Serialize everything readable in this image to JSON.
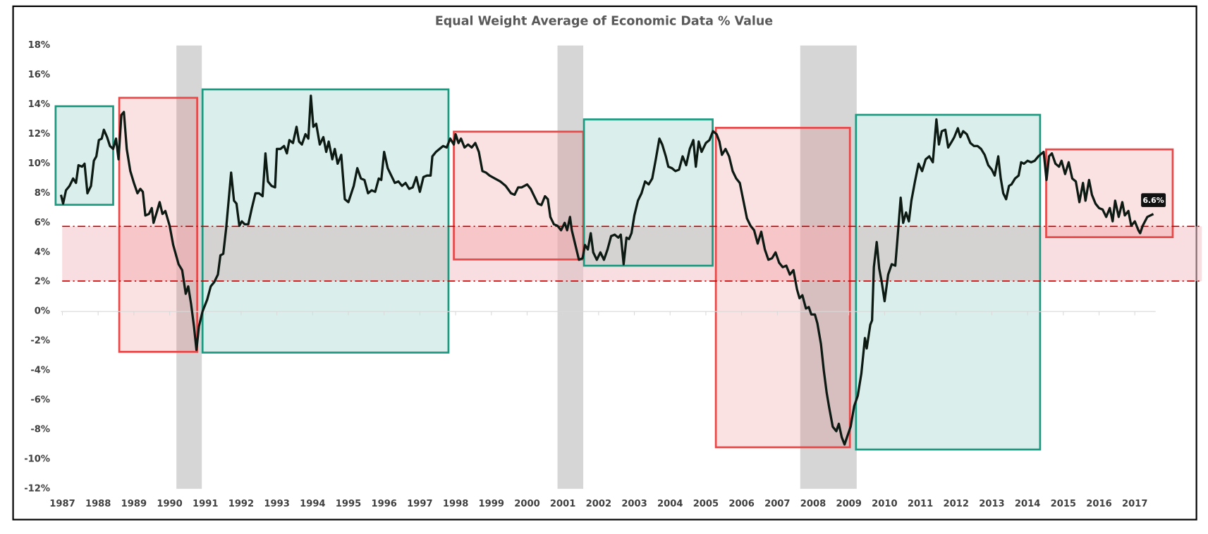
{
  "chart_data": {
    "type": "line",
    "title": "Equal Weight Average of Economic Data % Value",
    "xlim": [
      1986.8,
      2018.1
    ],
    "xticks": [
      1987,
      1988,
      1989,
      1990,
      1991,
      1992,
      1993,
      1994,
      1995,
      1996,
      1997,
      1998,
      1999,
      2000,
      2001,
      2002,
      2003,
      2004,
      2005,
      2006,
      2007,
      2008,
      2009,
      2010,
      2011,
      2012,
      2013,
      2014,
      2015,
      2016,
      2017
    ],
    "ylim": [
      -12,
      18
    ],
    "yticks": [
      {
        "value": -12,
        "label": "-12%"
      },
      {
        "value": -10,
        "label": "-10%"
      },
      {
        "value": -8,
        "label": "-8%"
      },
      {
        "value": -6,
        "label": "-6%"
      },
      {
        "value": -4,
        "label": "-4%"
      },
      {
        "value": -2,
        "label": "-2%"
      },
      {
        "value": 0,
        "label": "0%"
      },
      {
        "value": 2,
        "label": "2%"
      },
      {
        "value": 4,
        "label": "4%"
      },
      {
        "value": 6,
        "label": "6%"
      },
      {
        "value": 8,
        "label": "8%"
      },
      {
        "value": 10,
        "label": "10%"
      },
      {
        "value": 12,
        "label": "12%"
      },
      {
        "value": 14,
        "label": "14%"
      },
      {
        "value": 16,
        "label": "16%"
      },
      {
        "value": 18,
        "label": "18%"
      }
    ],
    "line_color": "#0d1a14",
    "end_label": "6.6%",
    "x": [
      1986.96,
      1987.02,
      1987.1,
      1987.2,
      1987.3,
      1987.38,
      1987.45,
      1987.55,
      1987.62,
      1987.7,
      1987.8,
      1987.88,
      1987.95,
      1988.02,
      1988.1,
      1988.16,
      1988.25,
      1988.33,
      1988.42,
      1988.5,
      1988.57,
      1988.65,
      1988.72,
      1988.8,
      1988.9,
      1989.0,
      1989.1,
      1989.18,
      1989.25,
      1989.32,
      1989.42,
      1989.5,
      1989.55,
      1989.65,
      1989.72,
      1989.8,
      1989.88,
      1990.0,
      1990.1,
      1990.25,
      1990.35,
      1990.45,
      1990.52,
      1990.6,
      1990.68,
      1990.75,
      1990.82,
      1990.92,
      1991.05,
      1991.15,
      1991.25,
      1991.35,
      1991.42,
      1991.5,
      1991.58,
      1991.65,
      1991.72,
      1991.8,
      1991.87,
      1991.95,
      1992.02,
      1992.1,
      1992.2,
      1992.3,
      1992.4,
      1992.5,
      1992.6,
      1992.68,
      1992.75,
      1992.85,
      1992.95,
      1993.0,
      1993.1,
      1993.2,
      1993.28,
      1993.35,
      1993.45,
      1993.55,
      1993.62,
      1993.7,
      1993.8,
      1993.88,
      1993.95,
      1994.02,
      1994.1,
      1994.2,
      1994.3,
      1994.38,
      1994.45,
      1994.55,
      1994.62,
      1994.7,
      1994.8,
      1994.9,
      1995.0,
      1995.15,
      1995.25,
      1995.35,
      1995.45,
      1995.55,
      1995.65,
      1995.75,
      1995.85,
      1995.92,
      1996.0,
      1996.1,
      1996.2,
      1996.3,
      1996.4,
      1996.5,
      1996.6,
      1996.7,
      1996.8,
      1996.9,
      1997.0,
      1997.1,
      1997.2,
      1997.3,
      1997.35,
      1997.45,
      1997.55,
      1997.65,
      1997.75,
      1997.85,
      1997.95,
      1998.0,
      1998.08,
      1998.15,
      1998.25,
      1998.35,
      1998.45,
      1998.55,
      1998.65,
      1998.75,
      1998.85,
      1998.95,
      1999.1,
      1999.25,
      1999.4,
      1999.55,
      1999.65,
      1999.75,
      1999.85,
      2000.0,
      2000.1,
      2000.2,
      2000.3,
      2000.4,
      2000.5,
      2000.58,
      2000.65,
      2000.75,
      2000.85,
      2000.95,
      2001.05,
      2001.12,
      2001.2,
      2001.25,
      2001.3,
      2001.38,
      2001.45,
      2001.55,
      2001.62,
      2001.7,
      2001.78,
      2001.85,
      2001.95,
      2002.05,
      2002.15,
      2002.25,
      2002.35,
      2002.45,
      2002.55,
      2002.62,
      2002.7,
      2002.78,
      2002.85,
      2002.92,
      2003.0,
      2003.1,
      2003.2,
      2003.3,
      2003.4,
      2003.5,
      2003.6,
      2003.7,
      2003.78,
      2003.88,
      2003.95,
      2004.05,
      2004.15,
      2004.25,
      2004.35,
      2004.45,
      2004.55,
      2004.65,
      2004.72,
      2004.8,
      2004.88,
      2005.0,
      2005.1,
      2005.2,
      2005.3,
      2005.38,
      2005.45,
      2005.55,
      2005.65,
      2005.75,
      2005.85,
      2005.95,
      2006.05,
      2006.15,
      2006.25,
      2006.35,
      2006.45,
      2006.55,
      2006.65,
      2006.75,
      2006.85,
      2006.95,
      2007.05,
      2007.15,
      2007.25,
      2007.35,
      2007.45,
      2007.55,
      2007.62,
      2007.7,
      2007.8,
      2007.88,
      2007.95,
      2008.05,
      2008.12,
      2008.22,
      2008.3,
      2008.38,
      2008.45,
      2008.55,
      2008.65,
      2008.72,
      2008.8,
      2008.88,
      2008.95,
      2009.05,
      2009.15,
      2009.25,
      2009.35,
      2009.45,
      2009.5,
      2009.6,
      2009.65,
      2009.7,
      2009.78,
      2009.85,
      2009.92,
      2010.0,
      2010.1,
      2010.2,
      2010.3,
      2010.38,
      2010.45,
      2010.52,
      2010.6,
      2010.68,
      2010.75,
      2010.85,
      2010.95,
      2011.05,
      2011.15,
      2011.25,
      2011.35,
      2011.45,
      2011.52,
      2011.6,
      2011.7,
      2011.78,
      2011.88,
      2011.95,
      2012.05,
      2012.12,
      2012.2,
      2012.3,
      2012.4,
      2012.5,
      2012.6,
      2012.7,
      2012.8,
      2012.9,
      2013.0,
      2013.08,
      2013.18,
      2013.25,
      2013.32,
      2013.4,
      2013.48,
      2013.55,
      2013.65,
      2013.75,
      2013.82,
      2013.9,
      2014.0,
      2014.1,
      2014.2,
      2014.3,
      2014.45,
      2014.53,
      2014.6,
      2014.68,
      2014.78,
      2014.88,
      2014.95,
      2015.05,
      2015.15,
      2015.25,
      2015.35,
      2015.45,
      2015.55,
      2015.62,
      2015.72,
      2015.8,
      2015.9,
      2016.0,
      2016.1,
      2016.2,
      2016.3,
      2016.38,
      2016.45,
      2016.55,
      2016.65,
      2016.72,
      2016.82,
      2016.9,
      2017.0,
      2017.1,
      2017.15,
      2017.22,
      2017.35,
      2017.52
    ],
    "values": [
      7.9,
      7.3,
      8.2,
      8.5,
      9.0,
      8.7,
      9.9,
      9.8,
      10.0,
      8.0,
      8.5,
      10.2,
      10.5,
      11.6,
      11.7,
      12.3,
      11.8,
      11.2,
      11.0,
      11.7,
      10.3,
      13.3,
      13.5,
      11.0,
      9.5,
      8.7,
      8.0,
      8.3,
      8.1,
      6.5,
      6.6,
      7.0,
      6.0,
      6.8,
      7.4,
      6.6,
      6.8,
      5.8,
      4.5,
      3.2,
      2.8,
      1.2,
      1.7,
      0.5,
      -1.0,
      -2.6,
      -1.0,
      0.0,
      0.8,
      1.7,
      2.0,
      2.5,
      3.8,
      3.9,
      5.6,
      7.5,
      9.4,
      7.5,
      7.3,
      5.8,
      6.1,
      5.9,
      5.9,
      7.0,
      8.0,
      8.0,
      7.8,
      10.7,
      8.8,
      8.5,
      8.4,
      11.0,
      11.0,
      11.2,
      10.7,
      11.6,
      11.4,
      12.5,
      11.5,
      11.3,
      12.0,
      11.7,
      14.6,
      12.5,
      12.7,
      11.3,
      11.8,
      10.8,
      11.5,
      10.3,
      11.0,
      10.0,
      10.6,
      7.6,
      7.4,
      8.5,
      9.7,
      9.0,
      8.9,
      8.0,
      8.2,
      8.1,
      9.0,
      8.9,
      10.8,
      9.7,
      9.2,
      8.7,
      8.8,
      8.5,
      8.7,
      8.3,
      8.4,
      9.1,
      8.1,
      9.1,
      9.2,
      9.2,
      10.5,
      10.8,
      11.0,
      11.2,
      11.1,
      11.7,
      11.3,
      12.0,
      11.4,
      11.7,
      11.1,
      11.3,
      11.1,
      11.4,
      10.8,
      9.5,
      9.4,
      9.2,
      9.0,
      8.8,
      8.5,
      8.0,
      7.9,
      8.4,
      8.4,
      8.6,
      8.3,
      7.8,
      7.3,
      7.2,
      7.8,
      7.6,
      6.4,
      5.9,
      5.8,
      5.5,
      6.0,
      5.5,
      6.4,
      5.5,
      5.0,
      4.2,
      3.5,
      3.6,
      4.5,
      4.2,
      5.3,
      4.0,
      3.5,
      4.0,
      3.5,
      4.2,
      5.1,
      5.2,
      5.0,
      5.2,
      3.2,
      5.0,
      4.9,
      5.3,
      6.5,
      7.5,
      8.0,
      8.8,
      8.6,
      9.0,
      10.3,
      11.7,
      11.3,
      10.5,
      9.8,
      9.7,
      9.5,
      9.6,
      10.5,
      9.9,
      11.0,
      11.6,
      9.8,
      11.5,
      10.8,
      11.4,
      11.6,
      12.2,
      12.0,
      11.5,
      10.6,
      11.0,
      10.5,
      9.5,
      9.0,
      8.7,
      7.5,
      6.3,
      5.8,
      5.5,
      4.6,
      5.4,
      4.2,
      3.5,
      3.6,
      4.0,
      3.3,
      3.0,
      3.1,
      2.5,
      2.8,
      1.5,
      0.9,
      1.1,
      0.2,
      0.3,
      -0.2,
      -0.2,
      -0.8,
      -2.2,
      -4.0,
      -5.5,
      -6.5,
      -7.8,
      -8.1,
      -7.6,
      -8.5,
      -9.0,
      -8.5,
      -7.8,
      -6.4,
      -5.7,
      -4.2,
      -1.8,
      -2.5,
      -0.9,
      -0.6,
      3.0,
      4.7,
      2.9,
      2.0,
      0.7,
      2.5,
      3.2,
      3.1,
      5.5,
      7.7,
      6.0,
      6.7,
      6.1,
      7.5,
      8.8,
      10.0,
      9.5,
      10.3,
      10.5,
      10.1,
      13.0,
      11.3,
      12.2,
      12.3,
      11.1,
      11.5,
      11.8,
      12.4,
      11.8,
      12.2,
      12.0,
      11.4,
      11.2,
      11.2,
      11.0,
      10.6,
      9.9,
      9.6,
      9.2,
      10.5,
      9.0,
      8.0,
      7.6,
      8.5,
      8.6,
      9.0,
      9.2,
      10.1,
      10.0,
      10.2,
      10.1,
      10.2,
      10.5,
      10.8,
      8.9,
      10.5,
      10.7,
      10.0,
      9.8,
      10.2,
      9.3,
      10.1,
      9.0,
      8.8,
      7.4,
      8.7,
      7.5,
      8.9,
      7.9,
      7.3,
      7.0,
      6.9,
      6.4,
      7.0,
      6.1,
      7.5,
      6.4,
      7.4,
      6.5,
      6.8,
      5.8,
      6.1,
      5.5,
      5.3,
      5.8,
      6.4,
      6.6
    ],
    "recessions": [
      [
        1990.19,
        1990.9
      ],
      [
        2000.85,
        2001.57
      ],
      [
        2007.64,
        2009.22
      ]
    ],
    "recession_color": "#c8c8c8",
    "band": [
      2.06,
      5.76
    ],
    "band_color": "#f4c2c8",
    "band_line_color": "#c00000",
    "boxes": [
      {
        "x": [
          1986.81,
          1988.42
        ],
        "y": [
          7.22,
          13.89
        ],
        "color": "#1a9a80"
      },
      {
        "x": [
          1988.59,
          1990.77
        ],
        "y": [
          -2.73,
          14.46
        ],
        "color": "#e84848"
      },
      {
        "x": [
          1990.92,
          1997.8
        ],
        "y": [
          -2.78,
          15.03
        ],
        "color": "#1a9a80"
      },
      {
        "x": [
          1997.95,
          2001.57
        ],
        "y": [
          3.52,
          12.17
        ],
        "color": "#e84848"
      },
      {
        "x": [
          2001.59,
          2005.19
        ],
        "y": [
          3.1,
          13.0
        ],
        "color": "#1a9a80"
      },
      {
        "x": [
          2005.28,
          2009.03
        ],
        "y": [
          -9.19,
          12.43
        ],
        "color": "#e84848"
      },
      {
        "x": [
          2009.2,
          2014.35
        ],
        "y": [
          -9.34,
          13.31
        ],
        "color": "#1a9a80"
      },
      {
        "x": [
          2014.52,
          2018.06
        ],
        "y": [
          5.03,
          10.97
        ],
        "color": "#e84848"
      }
    ]
  }
}
